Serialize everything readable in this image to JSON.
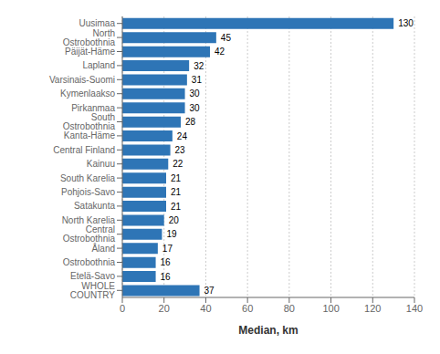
{
  "chart_data": {
    "type": "bar",
    "orientation": "horizontal",
    "categories": [
      "WHOLE COUNTRY",
      "Etelä-Savo",
      "Ostrobothnia",
      "Åland",
      "Central Ostrobothnia",
      "North Karelia",
      "Satakunta",
      "Pohjois-Savo",
      "South Karelia",
      "Kainuu",
      "Central Finland",
      "Kanta-Häme",
      "South Ostrobothnia",
      "Pirkanmaa",
      "Kymenlaakso",
      "Varsinais-Suomi",
      "Lapland",
      "Päijät-Häme",
      "North Ostrobothnia",
      "Uusimaa"
    ],
    "values": [
      37,
      16,
      16,
      17,
      19,
      20,
      21,
      21,
      21,
      22,
      23,
      24,
      28,
      30,
      30,
      31,
      32,
      42,
      45,
      130
    ],
    "color": "#2E75B6",
    "xlabel": "Median, km",
    "xlim": [
      0,
      140
    ],
    "xticks": [
      0,
      20,
      40,
      60,
      80,
      100,
      120,
      140
    ],
    "grid": true,
    "data_labels": true
  }
}
